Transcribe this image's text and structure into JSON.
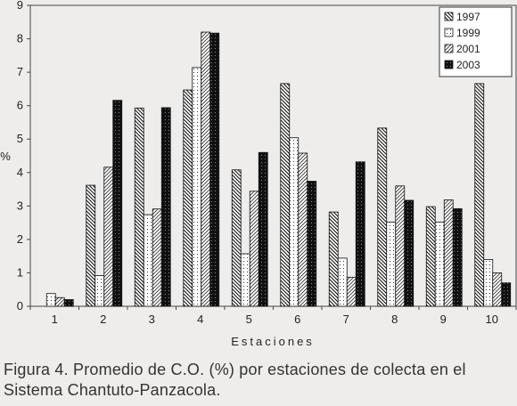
{
  "caption": "Figura 4. Promedio de C.O. (%) por estaciones de colecta en el Sistema Chantuto-Panzacola.",
  "chart_data": {
    "type": "bar",
    "categories": [
      "1",
      "2",
      "3",
      "4",
      "5",
      "6",
      "7",
      "8",
      "9",
      "10"
    ],
    "series": [
      {
        "name": "1997",
        "pattern": "diagonal-backslash",
        "values": [
          0,
          3.62,
          5.93,
          6.47,
          4.08,
          6.66,
          2.82,
          5.33,
          2.98,
          6.66
        ]
      },
      {
        "name": "1999",
        "pattern": "dots",
        "values": [
          0.38,
          0.92,
          2.74,
          7.14,
          1.57,
          5.04,
          1.44,
          2.52,
          2.52,
          1.4
        ]
      },
      {
        "name": "2001",
        "pattern": "diagonal-slash",
        "values": [
          0.26,
          4.16,
          2.91,
          8.2,
          3.44,
          4.58,
          0.87,
          3.6,
          3.18,
          1.0
        ]
      },
      {
        "name": "2003",
        "pattern": "black-speckled",
        "values": [
          0.2,
          6.16,
          5.94,
          8.17,
          4.6,
          3.74,
          4.32,
          3.17,
          2.92,
          0.7
        ]
      }
    ],
    "xlabel": "Estaciones",
    "ylabel": "%",
    "ylim": [
      0,
      9
    ],
    "yticks": [
      "0",
      "1",
      "2",
      "3",
      "4",
      "5",
      "6",
      "7",
      "8",
      "9"
    ],
    "grid": false,
    "legend_position": "top-right"
  }
}
